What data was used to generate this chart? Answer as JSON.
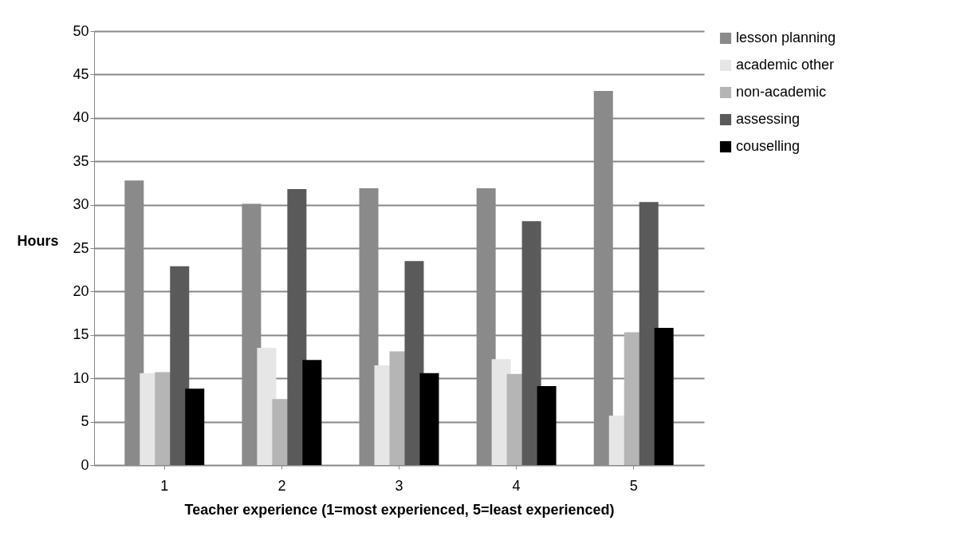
{
  "chart_data": {
    "type": "bar",
    "xlabel": "Teacher experience (1=most experienced, 5=least experienced)",
    "ylabel": "Hours",
    "categories": [
      "1",
      "2",
      "3",
      "4",
      "5"
    ],
    "series": [
      {
        "name": "lesson planning",
        "color": "#8a8a8a",
        "values": [
          32.8,
          30.1,
          31.9,
          31.9,
          43.1
        ]
      },
      {
        "name": "academic other",
        "color": "#e6e6e6",
        "values": [
          10.6,
          13.5,
          11.5,
          12.2,
          5.7
        ]
      },
      {
        "name": "non-academic",
        "color": "#b5b5b5",
        "values": [
          10.7,
          7.6,
          13.1,
          10.5,
          15.3
        ]
      },
      {
        "name": "assessing",
        "color": "#5a5a5a",
        "values": [
          22.9,
          31.8,
          23.5,
          28.1,
          30.3
        ]
      },
      {
        "name": "couselling",
        "color": "#000000",
        "values": [
          8.8,
          12.1,
          10.6,
          9.1,
          15.8
        ]
      }
    ],
    "ylim": [
      0,
      50
    ],
    "yticks": [
      0,
      5,
      10,
      15,
      20,
      25,
      30,
      35,
      40,
      45,
      50
    ],
    "grid": "y",
    "legend": "right"
  }
}
